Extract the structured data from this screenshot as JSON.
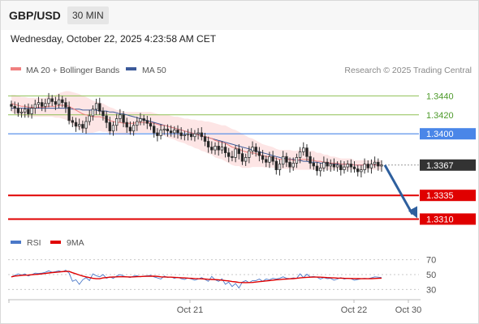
{
  "header": {
    "symbol": "GBP/USD",
    "timeframe": "30 MIN"
  },
  "timestamp": "Wednesday, October 22, 2025 4:23:58 AM CET",
  "legend": {
    "ma20_label": "MA 20 + Bollinger Bands",
    "ma50_label": "MA 50",
    "ma20_color": "#f08080",
    "ma50_color": "#3c5a9a",
    "rsi_label": "RSI",
    "rsi_color": "#4a78c8",
    "ma9_label": "9MA",
    "ma9_color": "#e00000"
  },
  "credit": "Research © 2025 Trading Central",
  "colors": {
    "up_candle": "#ffffff",
    "down_candle": "#222222",
    "bollinger_fill": "#fde5e5",
    "resistance_line": "#8fc054",
    "resistance_label": "#4d9a2a",
    "pivot_line": "#4a86e8",
    "support_line": "#e00000",
    "current_label_bg": "#333333",
    "arrow": "#2e5f9e"
  },
  "chart_data": {
    "type": "candlestick",
    "title": "GBP/USD 30 MIN",
    "price_axis": {
      "ylim": [
        1.3295,
        1.346
      ]
    },
    "x_ticks": [
      "Oct 21",
      "Oct 22",
      "Oct 30"
    ],
    "levels": [
      {
        "label": "1.3440",
        "value": 1.344,
        "kind": "resistance"
      },
      {
        "label": "1.3420",
        "value": 1.342,
        "kind": "resistance"
      },
      {
        "label": "1.3400",
        "value": 1.34,
        "kind": "pivot"
      },
      {
        "label": "1.3367",
        "value": 1.3367,
        "kind": "current"
      },
      {
        "label": "1.3335",
        "value": 1.3335,
        "kind": "support"
      },
      {
        "label": "1.3310",
        "value": 1.331,
        "kind": "support"
      }
    ],
    "arrow": {
      "from": 1.3367,
      "to": 1.331
    },
    "closes": [
      1.3429,
      1.3427,
      1.3422,
      1.3423,
      1.3426,
      1.3421,
      1.3427,
      1.3431,
      1.3433,
      1.3429,
      1.3432,
      1.3437,
      1.3434,
      1.3431,
      1.3436,
      1.3433,
      1.3428,
      1.3414,
      1.3412,
      1.3408,
      1.341,
      1.3406,
      1.3413,
      1.3419,
      1.3426,
      1.3432,
      1.3424,
      1.3419,
      1.3412,
      1.3403,
      1.3409,
      1.3416,
      1.342,
      1.3412,
      1.3407,
      1.3403,
      1.3409,
      1.3413,
      1.3416,
      1.3414,
      1.3411,
      1.3408,
      1.3401,
      1.3398,
      1.3404,
      1.3405,
      1.3403,
      1.3401,
      1.3404,
      1.3401,
      1.3398,
      1.3399,
      1.34,
      1.3397,
      1.34,
      1.3401,
      1.3397,
      1.3392,
      1.3386,
      1.3383,
      1.3387,
      1.3383,
      1.3386,
      1.338,
      1.3376,
      1.3375,
      1.3384,
      1.3379,
      1.3371,
      1.3375,
      1.3382,
      1.3386,
      1.3381,
      1.3377,
      1.3373,
      1.337,
      1.3376,
      1.3371,
      1.3362,
      1.3368,
      1.3376,
      1.337,
      1.3365,
      1.3369,
      1.3375,
      1.3381,
      1.3385,
      1.3376,
      1.3369,
      1.3366,
      1.3361,
      1.3364,
      1.337,
      1.3366,
      1.3368,
      1.3365,
      1.3367,
      1.3362,
      1.3365,
      1.3368,
      1.3365,
      1.3363,
      1.336,
      1.3362,
      1.3368,
      1.3364,
      1.3368,
      1.337,
      1.3366,
      1.3367
    ],
    "ma20": [
      1.3432,
      1.3431,
      1.343,
      1.3429,
      1.3429,
      1.3428,
      1.3428,
      1.3428,
      1.3428,
      1.3428,
      1.3428,
      1.3429,
      1.3429,
      1.3429,
      1.343,
      1.343,
      1.343,
      1.3429,
      1.3427,
      1.3425,
      1.3423,
      1.3421,
      1.342,
      1.3419,
      1.3418,
      1.3418,
      1.3418,
      1.3417,
      1.3416,
      1.3414,
      1.3413,
      1.3412,
      1.3412,
      1.3411,
      1.3411,
      1.3411,
      1.3411,
      1.3412,
      1.3412,
      1.3412,
      1.3412,
      1.3412,
      1.3411,
      1.341,
      1.3409,
      1.3409,
      1.3408,
      1.3407,
      1.3406,
      1.3405,
      1.3404,
      1.3403,
      1.3402,
      1.3401,
      1.34,
      1.3399,
      1.3398,
      1.3397,
      1.3396,
      1.3395,
      1.3393,
      1.3392,
      1.3391,
      1.339,
      1.3388,
      1.3386,
      1.3385,
      1.3384,
      1.3382,
      1.3381,
      1.338,
      1.338,
      1.3379,
      1.3378,
      1.3377,
      1.3376,
      1.3376,
      1.3375,
      1.3374,
      1.3373,
      1.3373,
      1.3373,
      1.3373,
      1.3372,
      1.3372,
      1.3373,
      1.3373,
      1.3373,
      1.3372,
      1.3372,
      1.3371,
      1.3371,
      1.337,
      1.337,
      1.3369,
      1.3369,
      1.3369,
      1.3368,
      1.3368,
      1.3368,
      1.3368,
      1.3367,
      1.3367,
      1.3367,
      1.3367,
      1.3367,
      1.3367,
      1.3367,
      1.3367,
      1.3367
    ],
    "ma50": [
      1.3427,
      1.3427,
      1.3427,
      1.3427,
      1.3427,
      1.3427,
      1.3427,
      1.3427,
      1.3427,
      1.3427,
      1.3427,
      1.3427,
      1.3427,
      1.3427,
      1.3427,
      1.3427,
      1.3427,
      1.3427,
      1.3426,
      1.3426,
      1.3426,
      1.3425,
      1.3425,
      1.3425,
      1.3425,
      1.3425,
      1.3424,
      1.3424,
      1.3424,
      1.3423,
      1.3423,
      1.3422,
      1.3421,
      1.3421,
      1.342,
      1.3419,
      1.3418,
      1.3417,
      1.3416,
      1.3415,
      1.3414,
      1.3413,
      1.3412,
      1.3411,
      1.341,
      1.3409,
      1.3408,
      1.3407,
      1.3406,
      1.3405,
      1.3404,
      1.3403,
      1.3402,
      1.3401,
      1.34,
      1.3399,
      1.3398,
      1.3397,
      1.3396,
      1.3395,
      1.3394,
      1.3393,
      1.3392,
      1.3391,
      1.339,
      1.3389,
      1.3388,
      1.3387,
      1.3386,
      1.3385,
      1.3384,
      1.3383,
      1.3382,
      1.3381,
      1.338,
      1.3379,
      1.3378,
      1.3377,
      1.3376,
      1.3375,
      1.3374,
      1.3374,
      1.3373,
      1.3373,
      1.3372,
      1.3372,
      1.3371,
      1.3371,
      1.337,
      1.337,
      1.337,
      1.3369,
      1.3369,
      1.3369,
      1.3369,
      1.3368,
      1.3368,
      1.3368,
      1.3368,
      1.3368,
      1.3368,
      1.3367,
      1.3367,
      1.3367,
      1.3367,
      1.3367,
      1.3367,
      1.3367,
      1.3367,
      1.3367
    ],
    "band_width": [
      0.0009,
      0.001,
      0.001,
      0.001,
      0.001,
      0.001,
      0.001,
      0.001,
      0.001,
      0.001,
      0.001,
      0.0011,
      0.0011,
      0.0012,
      0.0013,
      0.0014,
      0.0015,
      0.0016,
      0.0017,
      0.0018,
      0.0019,
      0.0019,
      0.0019,
      0.0018,
      0.0017,
      0.0016,
      0.0015,
      0.0015,
      0.0014,
      0.0014,
      0.0014,
      0.0013,
      0.0013,
      0.0012,
      0.0012,
      0.0012,
      0.0012,
      0.0011,
      0.0011,
      0.0011,
      0.0011,
      0.0011,
      0.0011,
      0.0011,
      0.0011,
      0.0011,
      0.0012,
      0.0012,
      0.0012,
      0.0013,
      0.0013,
      0.0013,
      0.0014,
      0.0014,
      0.0015,
      0.0015,
      0.0016,
      0.0016,
      0.0017,
      0.0017,
      0.0018,
      0.0018,
      0.0018,
      0.0019,
      0.0019,
      0.0019,
      0.0019,
      0.0018,
      0.0018,
      0.0017,
      0.0016,
      0.0015,
      0.0014,
      0.0013,
      0.0012,
      0.0012,
      0.0011,
      0.0011,
      0.001,
      0.001,
      0.001,
      0.001,
      0.001,
      0.001,
      0.001,
      0.0011,
      0.0011,
      0.0011,
      0.001,
      0.001,
      0.0009,
      0.0009,
      0.0008,
      0.0008,
      0.0007,
      0.0007,
      0.0006,
      0.0006,
      0.0006,
      0.0006,
      0.0006,
      0.0005,
      0.0005,
      0.0005,
      0.0005,
      0.0005,
      0.0005,
      0.0005,
      0.0005,
      0.0005
    ],
    "rsi_axis": {
      "ylim": [
        25,
        75
      ],
      "ticks": [
        "70",
        "50",
        "30"
      ],
      "tick_values": [
        70,
        50,
        30
      ]
    },
    "rsi": [
      47.0,
      49.0,
      51.0,
      49.5,
      51.0,
      48.0,
      50.0,
      52.0,
      51.5,
      52.0,
      53.0,
      55.0,
      53.0,
      54.0,
      55.0,
      53.5,
      56.0,
      52.0,
      41.0,
      43.0,
      37.0,
      43.0,
      46.0,
      42.0,
      51.0,
      48.5,
      47.0,
      50.0,
      45.0,
      47.0,
      45.0,
      48.0,
      50.0,
      48.0,
      47.0,
      46.0,
      48.0,
      48.5,
      47.0,
      48.0,
      48.5,
      49.0,
      47.0,
      45.5,
      44.0,
      48.0,
      46.0,
      47.0,
      45.0,
      46.5,
      44.5,
      43.5,
      45.5,
      44.0,
      42.5,
      44.0,
      46.0,
      43.5,
      41.0,
      47.5,
      43.0,
      41.0,
      44.5,
      37.0,
      40.0,
      34.0,
      38.0,
      32.0,
      40.0,
      42.0,
      39.0,
      42.0,
      42.0,
      44.0,
      41.0,
      44.0,
      43.0,
      45.0,
      44.0,
      45.0,
      47.0,
      45.0,
      44.5,
      45.5,
      45.0,
      51.0,
      46.0,
      50.5,
      47.0,
      47.5,
      46.5,
      44.0,
      46.0,
      44.5,
      45.0,
      42.5,
      44.0,
      46.0,
      44.0,
      45.0,
      44.5,
      42.5,
      43.5,
      44.5,
      45.0,
      44.5,
      45.5,
      47.0,
      46.5,
      46.0
    ],
    "ma9": [
      47.0,
      48.0,
      48.5,
      49.0,
      49.2,
      49.4,
      49.8,
      50.2,
      50.4,
      51.0,
      51.5,
      52.2,
      52.7,
      53.0,
      53.5,
      54.0,
      54.3,
      54.2,
      52.5,
      51.0,
      49.5,
      48.0,
      47.0,
      46.0,
      45.0,
      44.5,
      44.5,
      45.5,
      46.0,
      46.5,
      46.8,
      47.0,
      47.2,
      47.1,
      47.0,
      46.9,
      47.0,
      47.2,
      47.4,
      47.6,
      47.7,
      47.8,
      47.8,
      47.6,
      47.0,
      46.8,
      46.6,
      46.5,
      46.3,
      46.0,
      45.8,
      45.5,
      45.2,
      45.0,
      44.7,
      44.5,
      44.3,
      44.0,
      43.7,
      43.5,
      43.3,
      43.0,
      42.5,
      42.0,
      41.5,
      40.7,
      40.2,
      39.5,
      39.3,
      39.2,
      39.3,
      39.5,
      40.0,
      40.5,
      41.0,
      41.5,
      42.0,
      42.5,
      43.0,
      43.3,
      43.8,
      44.0,
      44.3,
      44.6,
      45.0,
      45.5,
      46.0,
      46.3,
      46.5,
      46.6,
      46.6,
      46.5,
      46.3,
      46.0,
      45.8,
      45.5,
      45.3,
      45.2,
      45.0,
      44.9,
      44.8,
      44.7,
      44.6,
      44.5,
      44.5,
      44.5,
      44.6,
      44.8,
      45.0,
      45.2
    ]
  }
}
